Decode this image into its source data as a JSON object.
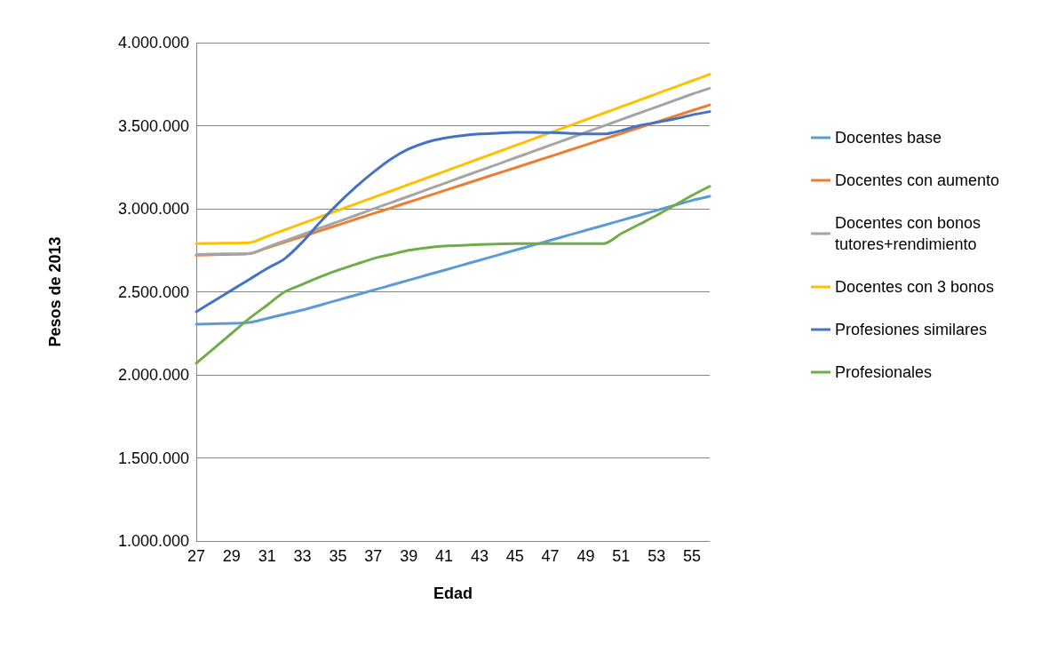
{
  "chart_data": {
    "type": "line",
    "xlabel": "Edad",
    "ylabel": "Pesos de 2013",
    "categories": [
      "27",
      null,
      "29",
      null,
      "31",
      null,
      "33",
      null,
      "35",
      null,
      "37",
      null,
      "39",
      null,
      "41",
      null,
      "43",
      null,
      "45",
      null,
      "47",
      null,
      "49",
      null,
      "51",
      null,
      "53",
      null,
      "55",
      null
    ],
    "series": [
      {
        "name": "Docentes base",
        "color": "#5b9bd5",
        "values": [
          2305000,
          2308000,
          2310000,
          2315000,
          2340000,
          2365000,
          2390000,
          2420000,
          2450000,
          2480000,
          2510000,
          2540000,
          2570000,
          2600000,
          2630000,
          2660000,
          2690000,
          2720000,
          2750000,
          2780000,
          2810000,
          2840000,
          2870000,
          2900000,
          2930000,
          2960000,
          2990000,
          3020000,
          3050000,
          3075000
        ]
      },
      {
        "name": "Docentes con aumento",
        "color": "#ed7d31",
        "values": [
          2720000,
          2723000,
          2726000,
          2730000,
          2764000,
          2799000,
          2833000,
          2868000,
          2902000,
          2937000,
          2971000,
          3005000,
          3040000,
          3074000,
          3109000,
          3143000,
          3178000,
          3212000,
          3246000,
          3281000,
          3315000,
          3350000,
          3384000,
          3419000,
          3453000,
          3487000,
          3522000,
          3556000,
          3591000,
          3625000
        ]
      },
      {
        "name": "Docentes con bonos tutores+rendimiento",
        "color": "#a5a5a5",
        "values": [
          2725000,
          2727000,
          2729000,
          2730000,
          2768000,
          2807000,
          2845000,
          2884000,
          2922000,
          2960000,
          2999000,
          3037000,
          3075000,
          3114000,
          3152000,
          3191000,
          3229000,
          3267000,
          3306000,
          3344000,
          3383000,
          3421000,
          3460000,
          3498000,
          3537000,
          3575000,
          3613000,
          3652000,
          3690000,
          3725000
        ]
      },
      {
        "name": "Docentes con 3 bonos",
        "color": "#ffc000",
        "values": [
          2790000,
          2792000,
          2793000,
          2795000,
          2834000,
          2873000,
          2912000,
          2951000,
          2990000,
          3029000,
          3068000,
          3107000,
          3146000,
          3185000,
          3224000,
          3263000,
          3302000,
          3341000,
          3380000,
          3419000,
          3458000,
          3497000,
          3536000,
          3575000,
          3614000,
          3653000,
          3692000,
          3731000,
          3770000,
          3810000
        ]
      },
      {
        "name": "Profesiones similares",
        "color": "#4472c4",
        "values": [
          2380000,
          2445000,
          2510000,
          2575000,
          2640000,
          2700000,
          2800000,
          2920000,
          3030000,
          3130000,
          3220000,
          3300000,
          3360000,
          3400000,
          3425000,
          3440000,
          3450000,
          3455000,
          3460000,
          3460000,
          3458000,
          3455000,
          3450000,
          3450000,
          3470000,
          3500000,
          3520000,
          3540000,
          3565000,
          3585000
        ]
      },
      {
        "name": "Profesionales",
        "color": "#70ad47",
        "values": [
          2070000,
          2160000,
          2250000,
          2340000,
          2420000,
          2500000,
          2545000,
          2590000,
          2630000,
          2665000,
          2700000,
          2725000,
          2750000,
          2765000,
          2775000,
          2780000,
          2785000,
          2788000,
          2790000,
          2790000,
          2790000,
          2790000,
          2790000,
          2790000,
          2850000,
          2905000,
          2960000,
          3020000,
          3080000,
          3135000
        ]
      }
    ],
    "ylim": [
      1000000,
      4000000
    ],
    "yticks": [
      {
        "value": 1000000,
        "label": "1.000.000"
      },
      {
        "value": 1500000,
        "label": "1.500.000"
      },
      {
        "value": 2000000,
        "label": "2.000.000"
      },
      {
        "value": 2500000,
        "label": "2.500.000"
      },
      {
        "value": 3000000,
        "label": "3.000.000"
      },
      {
        "value": 3500000,
        "label": "3.500.000"
      },
      {
        "value": 4000000,
        "label": "4.000.000"
      }
    ],
    "grid": "y",
    "legend": "right",
    "marker": "none",
    "line_style": "solid"
  }
}
